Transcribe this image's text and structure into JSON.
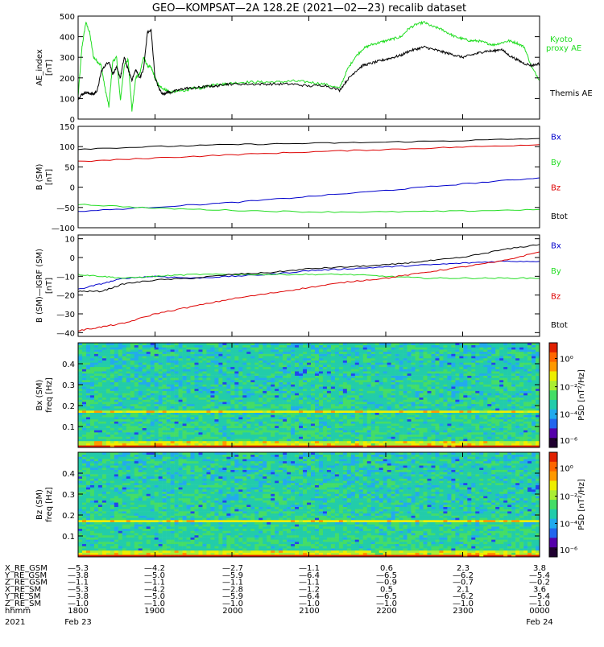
{
  "title": "GEO—KOMPSAT—2A 128.2E (2021—02—23) recalib dataset",
  "colors": {
    "black": "#000000",
    "blue": "#0000cc",
    "green": "#22dd22",
    "red": "#dd0000"
  },
  "chart_data": [
    {
      "type": "line",
      "panel": "ae",
      "ylabel_lines": [
        "AE_index",
        "[nT]"
      ],
      "ylim": [
        0,
        500
      ],
      "yticks": [
        0,
        100,
        200,
        300,
        400,
        500
      ],
      "xlim": [
        18.0,
        24.0
      ],
      "legend": [
        "Kyoto",
        "proxy AE",
        "Themis AE"
      ],
      "series": [
        {
          "name": "Kyoto proxy AE",
          "color": "#22dd22",
          "x": [
            18.0,
            18.05,
            18.1,
            18.15,
            18.2,
            18.25,
            18.3,
            18.35,
            18.4,
            18.45,
            18.5,
            18.55,
            18.6,
            18.65,
            18.7,
            18.75,
            18.8,
            18.85,
            18.9,
            18.95,
            19.0,
            19.05,
            19.1,
            19.15,
            19.2,
            19.3,
            19.4,
            19.5,
            19.6,
            19.7,
            19.8,
            19.9,
            20.0,
            20.2,
            20.4,
            20.6,
            20.8,
            21.0,
            21.2,
            21.4,
            21.5,
            21.6,
            21.7,
            21.8,
            21.9,
            22.0,
            22.1,
            22.2,
            22.3,
            22.4,
            22.5,
            22.6,
            22.7,
            22.8,
            22.9,
            23.0,
            23.1,
            23.2,
            23.3,
            23.4,
            23.5,
            23.6,
            23.7,
            23.8,
            23.9,
            24.0
          ],
          "y": [
            110,
            350,
            470,
            420,
            300,
            280,
            260,
            150,
            60,
            280,
            300,
            90,
            260,
            290,
            40,
            200,
            220,
            300,
            260,
            250,
            200,
            160,
            150,
            140,
            130,
            135,
            140,
            150,
            150,
            160,
            170,
            170,
            175,
            180,
            180,
            180,
            185,
            180,
            170,
            150,
            240,
            300,
            340,
            360,
            370,
            380,
            390,
            400,
            440,
            460,
            470,
            450,
            440,
            420,
            400,
            390,
            380,
            380,
            370,
            360,
            370,
            380,
            370,
            350,
            250,
            190
          ]
        },
        {
          "name": "Themis AE",
          "color": "#000000",
          "x": [
            18.0,
            18.05,
            18.1,
            18.15,
            18.2,
            18.25,
            18.3,
            18.35,
            18.4,
            18.45,
            18.5,
            18.55,
            18.6,
            18.65,
            18.7,
            18.75,
            18.8,
            18.85,
            18.9,
            18.95,
            19.0,
            19.05,
            19.1,
            19.15,
            19.2,
            19.3,
            19.4,
            19.5,
            19.6,
            19.7,
            19.8,
            19.9,
            20.0,
            20.2,
            20.4,
            20.6,
            20.8,
            21.0,
            21.2,
            21.4,
            21.5,
            21.6,
            21.7,
            21.8,
            21.9,
            22.0,
            22.1,
            22.2,
            22.3,
            22.4,
            22.5,
            22.6,
            22.7,
            22.8,
            22.9,
            23.0,
            23.1,
            23.2,
            23.3,
            23.4,
            23.5,
            23.6,
            23.7,
            23.8,
            23.9,
            24.0
          ],
          "y": [
            100,
            120,
            130,
            125,
            120,
            140,
            230,
            260,
            280,
            220,
            250,
            200,
            300,
            240,
            190,
            240,
            200,
            240,
            420,
            430,
            200,
            150,
            120,
            130,
            130,
            140,
            150,
            150,
            155,
            160,
            160,
            170,
            170,
            170,
            170,
            170,
            170,
            160,
            165,
            140,
            190,
            230,
            260,
            270,
            280,
            290,
            300,
            310,
            330,
            340,
            350,
            340,
            330,
            320,
            310,
            300,
            310,
            320,
            330,
            330,
            340,
            310,
            290,
            270,
            260,
            270
          ]
        }
      ]
    },
    {
      "type": "line",
      "panel": "b_sm",
      "ylabel_lines": [
        "B (SM)",
        "[nT]"
      ],
      "ylim": [
        -100,
        150
      ],
      "yticks": [
        -100,
        -50,
        0,
        50,
        100,
        150
      ],
      "xlim": [
        18.0,
        24.0
      ],
      "legend": [
        "Bx",
        "By",
        "Bz",
        "Btot"
      ],
      "series": [
        {
          "name": "Bx",
          "color": "#0000cc",
          "x": [
            18.0,
            19.0,
            20.0,
            21.0,
            22.0,
            23.0,
            24.0
          ],
          "y": [
            -60,
            -49,
            -38,
            -23,
            -8,
            8,
            23
          ]
        },
        {
          "name": "By",
          "color": "#22dd22",
          "x": [
            18.0,
            19.0,
            20.0,
            21.0,
            22.0,
            23.0,
            24.0
          ],
          "y": [
            -42,
            -52,
            -57,
            -61,
            -61,
            -59,
            -55
          ]
        },
        {
          "name": "Bz",
          "color": "#dd0000",
          "x": [
            18.0,
            19.0,
            20.0,
            21.0,
            22.0,
            23.0,
            24.0
          ],
          "y": [
            63,
            72,
            80,
            87,
            93,
            99,
            105
          ]
        },
        {
          "name": "Btot",
          "color": "#000000",
          "x": [
            18.0,
            19.0,
            20.0,
            21.0,
            22.0,
            23.0,
            24.0
          ],
          "y": [
            94,
            100,
            105,
            108,
            111,
            115,
            120
          ]
        }
      ]
    },
    {
      "type": "line",
      "panel": "b_igrf",
      "ylabel_lines": [
        "B (SM)—IGRF (SM)",
        "[nT]"
      ],
      "ylim": [
        -42,
        12
      ],
      "yticks": [
        -40,
        -30,
        -20,
        -10,
        0,
        10
      ],
      "xlim": [
        18.0,
        24.0
      ],
      "legend": [
        "Bx",
        "By",
        "Bz",
        "Btot"
      ],
      "series": [
        {
          "name": "Bx",
          "color": "#0000cc",
          "x": [
            18.0,
            18.3,
            18.6,
            19.0,
            19.5,
            20.0,
            20.5,
            21.0,
            21.5,
            22.0,
            22.5,
            23.0,
            23.5,
            24.0
          ],
          "y": [
            -17,
            -14,
            -11,
            -10,
            -11,
            -10,
            -9,
            -7,
            -6,
            -5,
            -4,
            -3,
            -2,
            -2
          ]
        },
        {
          "name": "By",
          "color": "#22dd22",
          "x": [
            18.0,
            18.3,
            18.6,
            19.0,
            19.5,
            20.0,
            20.5,
            21.0,
            21.5,
            22.0,
            22.5,
            23.0,
            23.5,
            24.0
          ],
          "y": [
            -9,
            -10,
            -11,
            -10,
            -9,
            -9,
            -9,
            -9,
            -9,
            -10,
            -11,
            -11,
            -11,
            -11
          ]
        },
        {
          "name": "Bz",
          "color": "#dd0000",
          "x": [
            18.0,
            18.3,
            18.6,
            19.0,
            19.5,
            20.0,
            20.5,
            21.0,
            21.5,
            22.0,
            22.5,
            23.0,
            23.5,
            24.0
          ],
          "y": [
            -39,
            -37,
            -35,
            -30,
            -26,
            -22,
            -19,
            -16,
            -13,
            -11,
            -8,
            -5,
            -2,
            3
          ]
        },
        {
          "name": "Btot",
          "color": "#000000",
          "x": [
            18.0,
            18.3,
            18.6,
            19.0,
            19.5,
            20.0,
            20.5,
            21.0,
            21.5,
            22.0,
            22.5,
            23.0,
            23.5,
            24.0
          ],
          "y": [
            -18,
            -18,
            -14,
            -12,
            -11,
            -9,
            -8,
            -6,
            -5,
            -4,
            -2,
            0,
            4,
            7
          ]
        }
      ]
    },
    {
      "type": "heatmap",
      "panel": "bx_psd",
      "ylabel_lines": [
        "Bx (SM)",
        "freq [Hz]"
      ],
      "ylim": [
        0,
        0.5
      ],
      "yticks": [
        0.1,
        0.2,
        0.3,
        0.4
      ],
      "xlim": [
        18.0,
        24.0
      ],
      "colorbar": {
        "label": "PSD [nT²/Hz]",
        "tick_labels": [
          "10⁰",
          "10⁻²",
          "10⁻⁴",
          "10⁻⁶"
        ]
      }
    },
    {
      "type": "heatmap",
      "panel": "bz_psd",
      "ylabel_lines": [
        "Bz (SM)",
        "freq [Hz]"
      ],
      "ylim": [
        0,
        0.5
      ],
      "yticks": [
        0.1,
        0.2,
        0.3,
        0.4
      ],
      "xlim": [
        18.0,
        24.0
      ],
      "colorbar": {
        "label": "PSD [nT²/Hz]",
        "tick_labels": [
          "10⁰",
          "10⁻²",
          "10⁻⁴",
          "10⁻⁶"
        ]
      }
    }
  ],
  "ephemeris": {
    "rows": [
      {
        "label": "X_RE_GSM",
        "values": [
          "—5.3",
          "—4.2",
          "—2.7",
          "—1.1",
          "0.6",
          "2.3",
          "3.8"
        ]
      },
      {
        "label": "Y_RE_GSM",
        "values": [
          "—3.8",
          "—5.0",
          "—5.9",
          "—6.4",
          "—6.5",
          "—6.2",
          "—5.4"
        ]
      },
      {
        "label": "Z_RE_GSM",
        "values": [
          "—1.1",
          "—1.1",
          "—1.1",
          "—1.1",
          "—0.9",
          "—0.7",
          "—0.2"
        ]
      },
      {
        "label": "X_RE_SM",
        "values": [
          "—5.3",
          "—4.2",
          "—2.8",
          "—1.2",
          "0.5",
          "2.1",
          "3.6"
        ]
      },
      {
        "label": "Y_RE_SM",
        "values": [
          "—3.8",
          "—5.0",
          "—5.9",
          "—6.4",
          "—6.5",
          "—6.2",
          "—5.4"
        ]
      },
      {
        "label": "Z_RE_SM",
        "values": [
          "—1.0",
          "—1.0",
          "—1.0",
          "—1.0",
          "—1.0",
          "—1.0",
          "—1.0"
        ]
      },
      {
        "label": "hhmm",
        "values": [
          "1800",
          "1900",
          "2000",
          "2100",
          "2200",
          "2300",
          "0000"
        ]
      }
    ],
    "year": "2021",
    "start_date": "Feb 23",
    "end_date": "Feb 24"
  }
}
